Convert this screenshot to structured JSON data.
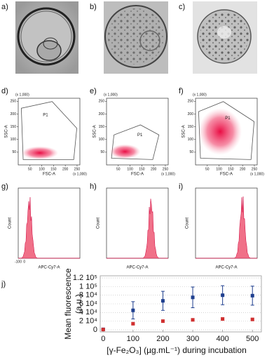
{
  "images": [
    {
      "label": "a)"
    },
    {
      "label": "b)"
    },
    {
      "label": "c)"
    }
  ],
  "scatter_panels": [
    {
      "label": "d)",
      "ylabel": "SSC-A",
      "yunit": "(x 1,000)",
      "xlabel": "FSC-A",
      "xunit": "(x 1,000)",
      "gate": "P1",
      "xlim": [
        0,
        262
      ],
      "ylim": [
        0,
        262
      ],
      "xticks": [
        50,
        100,
        150,
        200,
        250
      ],
      "yticks": [
        50,
        100,
        150,
        200,
        250
      ]
    },
    {
      "label": "e)",
      "ylabel": "SSC-A",
      "yunit": "(x 1,000)",
      "xlabel": "FSC-A",
      "xunit": "(x 1,000)",
      "gate": "P1",
      "xlim": [
        0,
        262
      ],
      "ylim": [
        0,
        262
      ],
      "xticks": [
        50,
        100,
        150,
        200,
        250
      ],
      "yticks": [
        50,
        100,
        150,
        200,
        250
      ]
    },
    {
      "label": "f)",
      "ylabel": "SSC-A",
      "yunit": "(x 1,000)",
      "xlabel": "FSC-A",
      "xunit": "(x 1,000)",
      "gate": "P1",
      "xlim": [
        0,
        262
      ],
      "ylim": [
        0,
        262
      ],
      "xticks": [
        50,
        100,
        150,
        200,
        250
      ],
      "yticks": [
        50,
        100,
        150,
        200,
        250
      ]
    }
  ],
  "histogram_panels": [
    {
      "label": "g)",
      "ylabel": "Count",
      "xlabel": "APC-Cy7-A",
      "xtick_labels": [
        "-100",
        "0"
      ]
    },
    {
      "label": "h)",
      "ylabel": "Count",
      "xlabel": "APC-Cy7-A"
    },
    {
      "label": "i)",
      "ylabel": "Count",
      "xlabel": "APC-Cy7-A"
    }
  ],
  "chart_data": {
    "type": "errorbar",
    "label": "j)",
    "ylabel": [
      "Mean fluorescence",
      "(a.u.)"
    ],
    "xlabel": "[γ-Fe₂O₃] (µg.mL⁻¹) during incubation",
    "x": [
      0,
      100,
      200,
      300,
      400,
      500
    ],
    "xlim": [
      -10,
      530
    ],
    "xticks": [
      0,
      100,
      200,
      300,
      400,
      500
    ],
    "ylim": [
      -5000,
      125000
    ],
    "yticks": [
      0,
      {
        "value": 20000,
        "label": "2 10⁴"
      },
      {
        "value": 40000,
        "label": "4 10⁴"
      },
      {
        "value": 60000,
        "label": "6 10⁴"
      },
      {
        "value": 80000,
        "label": "8 10⁴"
      },
      {
        "value": 100000,
        "label": "1 10⁵"
      },
      {
        "value": 120000,
        "label": "1.2 10⁵"
      }
    ],
    "grid": true,
    "series": [
      {
        "color": "#1f3f8f",
        "values": [
          1000,
          45000,
          67000,
          75000,
          80000,
          79000
        ],
        "errors": [
          500,
          20000,
          22000,
          24000,
          22000,
          22000
        ]
      },
      {
        "color": "#d03030",
        "values": [
          500,
          14000,
          20000,
          23000,
          25000,
          24000
        ],
        "errors": [
          300,
          2000,
          2000,
          2500,
          2500,
          2000
        ]
      }
    ]
  }
}
